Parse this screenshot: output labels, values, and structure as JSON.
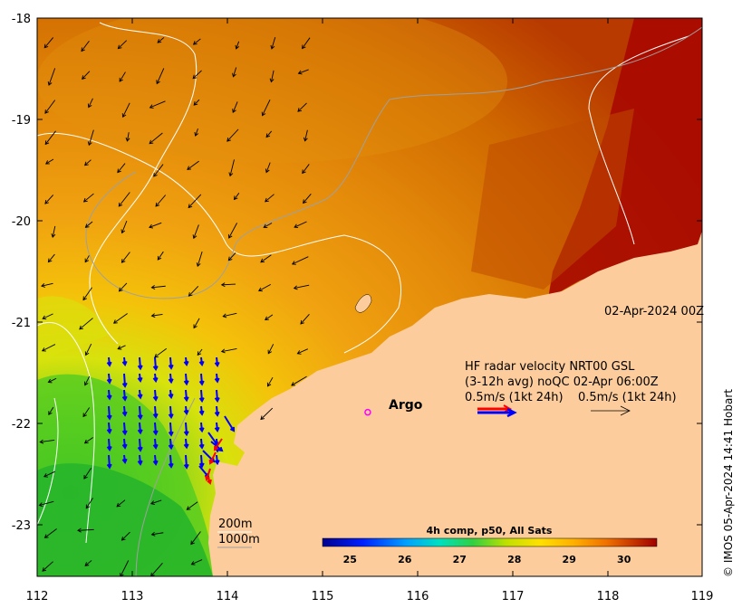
{
  "map": {
    "lon_ticks": [
      "112",
      "113",
      "114",
      "115",
      "116",
      "117",
      "118",
      "119"
    ],
    "lat_ticks": [
      "-18",
      "-19",
      "-20",
      "-21",
      "-22",
      "-23"
    ],
    "lon_range": [
      112,
      119
    ],
    "lat_range": [
      -23.5,
      -18
    ],
    "date_label": "02-Apr-2024 00Z",
    "argo_label": "Argo",
    "argo_position": {
      "lon": 115.48,
      "lat": -21.89
    },
    "depth_labels": [
      "200m",
      "1000m"
    ],
    "credit": "© IMOS 05-Apr-2024 14:41 Hobart"
  },
  "radar": {
    "line1": "HF radar velocity  NRT00 GSL",
    "line2": "(3-12h avg) noQC 02-Apr 06:00Z",
    "line3_left": "0.5m/s (1kt 24h)",
    "line3_right": "0.5m/s (1kt 24h)",
    "color_primary": "#0000ff",
    "color_secondary": "#ff0000"
  },
  "colorbar": {
    "title": "4h comp, p50, All Sats",
    "ticks": [
      "25",
      "26",
      "27",
      "28",
      "29",
      "30"
    ],
    "range": [
      24.5,
      30.6
    ]
  },
  "colors": {
    "land": "#fccc9c",
    "sst_warm": "#d06a00",
    "sst_hot": "#a80a00",
    "sst_cool": "#2fc02a"
  }
}
